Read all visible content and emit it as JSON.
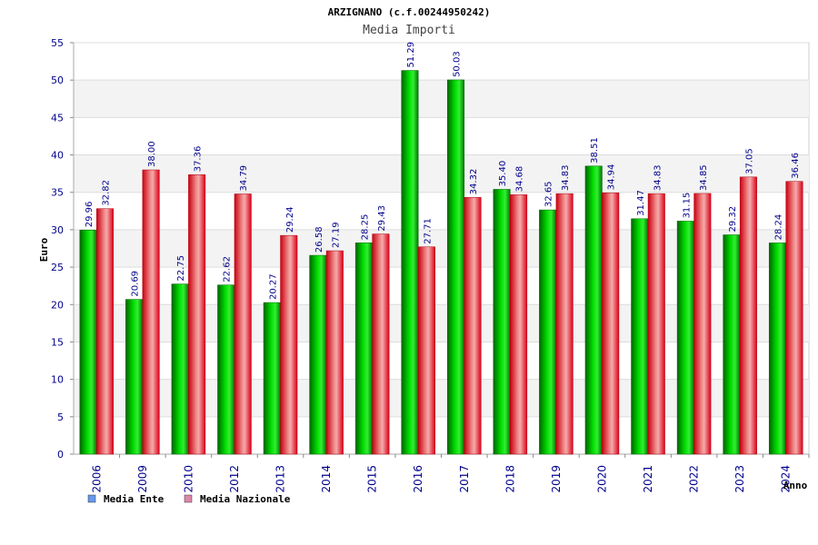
{
  "chart_data": {
    "type": "bar",
    "title": "ARZIGNANO (c.f.00244950242)",
    "subtitle": "Media Importi",
    "ylabel": "Euro",
    "xlabel": "Anno",
    "ylim": [
      0,
      55
    ],
    "yticks": [
      "0",
      "5",
      "10",
      "15",
      "20",
      "25",
      "30",
      "35",
      "40",
      "45",
      "50",
      "55"
    ],
    "grid": true,
    "legend_position": "bottom-left",
    "categories": [
      "2006",
      "2009",
      "2010",
      "2012",
      "2013",
      "2014",
      "2015",
      "2016",
      "2017",
      "2018",
      "2019",
      "2020",
      "2021",
      "2022",
      "2023",
      "2024"
    ],
    "series": [
      {
        "name": "Media Ente",
        "color": "#00aa00",
        "legend_color": "#6699ee",
        "values": [
          29.96,
          20.69,
          22.75,
          22.62,
          20.27,
          26.58,
          28.25,
          51.29,
          50.03,
          35.4,
          32.65,
          38.51,
          31.47,
          31.15,
          29.32,
          28.24
        ],
        "labels": [
          "29.96",
          "20.69",
          "22.75",
          "22.62",
          "20.27",
          "26.58",
          "28.25",
          "51.29",
          "50.03",
          "35.40",
          "32.65",
          "38.51",
          "31.47",
          "31.15",
          "29.32",
          "28.24"
        ]
      },
      {
        "name": "Media Nazionale",
        "color": "#e0202a",
        "legend_color": "#dd88aa",
        "values": [
          32.82,
          38.0,
          37.36,
          34.79,
          29.24,
          27.19,
          29.43,
          27.71,
          34.32,
          34.68,
          34.83,
          34.94,
          34.83,
          34.85,
          37.05,
          36.46
        ],
        "labels": [
          "32.82",
          "38.00",
          "37.36",
          "34.79",
          "29.24",
          "27.19",
          "29.43",
          "27.71",
          "34.32",
          "34.68",
          "34.83",
          "34.94",
          "34.83",
          "34.85",
          "37.05",
          "36.46"
        ]
      }
    ]
  }
}
